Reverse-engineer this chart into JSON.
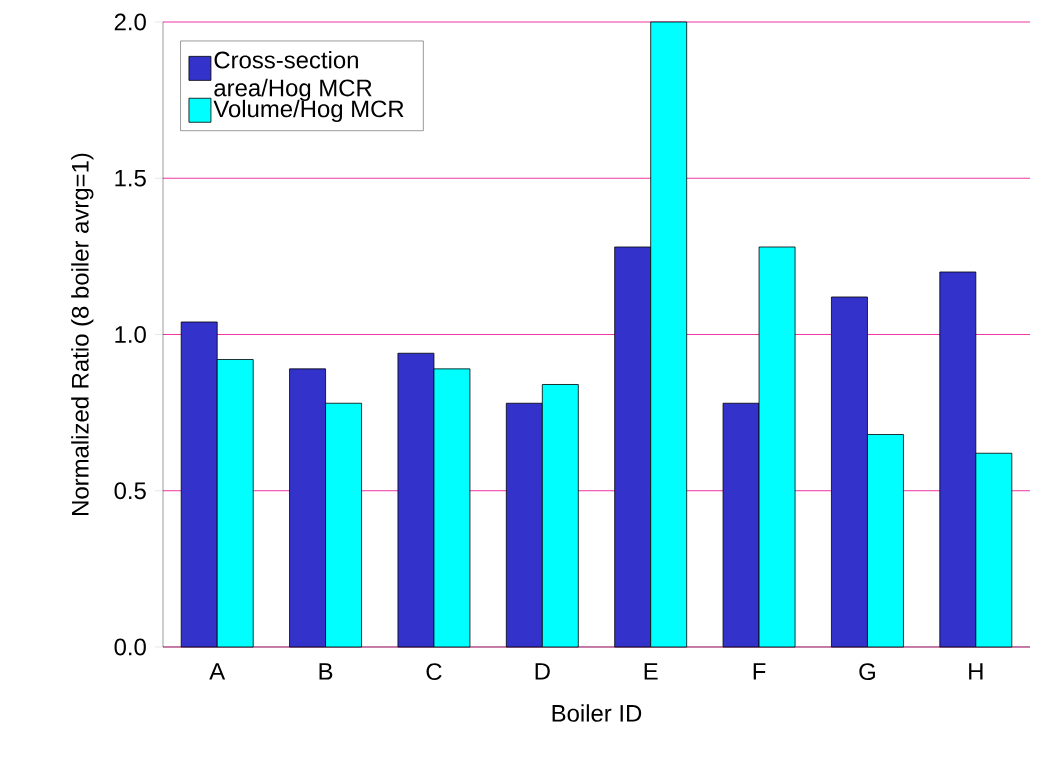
{
  "chart_data": {
    "type": "bar",
    "xlabel": "Boiler ID",
    "ylabel": "Normalized Ratio (8 boiler avrg=1)",
    "categories": [
      "A",
      "B",
      "C",
      "D",
      "E",
      "F",
      "G",
      "H"
    ],
    "series": [
      {
        "name": "Cross-section area/Hog MCR",
        "color": "#3333cc",
        "values": [
          1.04,
          0.89,
          0.94,
          0.78,
          1.28,
          0.78,
          1.12,
          1.2
        ]
      },
      {
        "name": "Volume/Hog MCR",
        "color": "#00ffff",
        "values": [
          0.92,
          0.78,
          0.89,
          0.84,
          2.0,
          1.28,
          0.68,
          0.62
        ]
      }
    ],
    "ylim": [
      0,
      2
    ],
    "yticks": [
      {
        "value": 0,
        "label": "0.0"
      },
      {
        "value": 0.5,
        "label": "0.5"
      },
      {
        "value": 1,
        "label": "1.0"
      },
      {
        "value": 1.5,
        "label": "1.5"
      },
      {
        "value": 2,
        "label": "2.0"
      }
    ],
    "grid": "y",
    "legend": "top left"
  }
}
